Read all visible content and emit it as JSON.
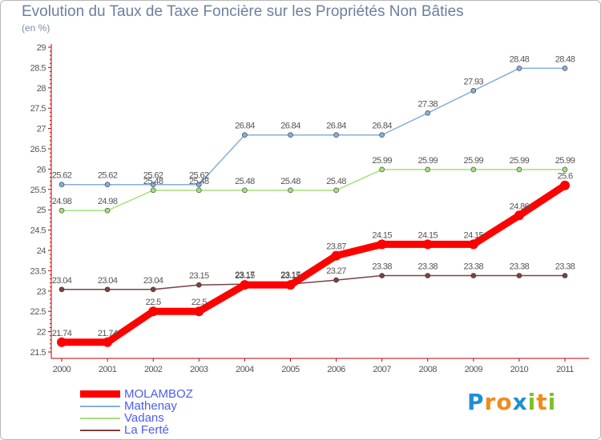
{
  "chart_data": {
    "type": "line",
    "title": "Evolution du Taux de Taxe Foncière sur les Propriétés Non Bâties",
    "subtitle": "(en %)",
    "x": [
      "2000",
      "2001",
      "2002",
      "2003",
      "2004",
      "2005",
      "2006",
      "2007",
      "2008",
      "2009",
      "2010",
      "2011"
    ],
    "ylim": [
      21.5,
      29
    ],
    "yticks": [
      "21.5",
      "22",
      "22.5",
      "23",
      "23.5",
      "24",
      "24.5",
      "25",
      "25.5",
      "26",
      "26.5",
      "27",
      "27.5",
      "28",
      "28.5",
      "29"
    ],
    "grid": false,
    "series": [
      {
        "name": "MOLAMBOZ",
        "color": "#ff0000",
        "values": [
          21.74,
          21.74,
          22.5,
          22.5,
          23.15,
          23.15,
          23.87,
          24.15,
          24.15,
          24.15,
          24.86,
          25.6
        ],
        "labels": [
          "21.74",
          "21.74",
          "22.5",
          "22.5",
          "23.15",
          "23.15",
          "23.87",
          "24.15",
          "24.15",
          "24.15",
          "24.86",
          "25.6"
        ]
      },
      {
        "name": "Mathenay",
        "color": "#86aede",
        "values": [
          25.62,
          25.62,
          25.62,
          25.62,
          26.84,
          26.84,
          26.84,
          26.84,
          27.38,
          27.93,
          28.48,
          28.48
        ],
        "labels": [
          "25.62",
          "25.62",
          "25.62",
          "25.62",
          "26.84",
          "26.84",
          "26.84",
          "26.84",
          "27.38",
          "27.93",
          "28.48",
          "28.48"
        ]
      },
      {
        "name": "Vadans",
        "color": "#a6e07a",
        "values": [
          24.98,
          24.98,
          25.48,
          25.48,
          25.48,
          25.48,
          25.48,
          25.99,
          25.99,
          25.99,
          25.99,
          25.99
        ],
        "labels": [
          "24.98",
          "24.98",
          "25.48",
          "25.48",
          "25.48",
          "25.48",
          "25.48",
          "25.99",
          "25.99",
          "25.99",
          "25.99",
          "25.99"
        ]
      },
      {
        "name": "La Ferté",
        "color": "#7a4242",
        "values": [
          23.04,
          23.04,
          23.04,
          23.15,
          23.17,
          23.17,
          23.27,
          23.38,
          23.38,
          23.38,
          23.38,
          23.38
        ],
        "labels": [
          "23.04",
          "23.04",
          "23.04",
          "23.15",
          "23.17",
          "23.17",
          "23.27",
          "23.38",
          "23.38",
          "23.38",
          "23.38",
          "23.38"
        ]
      }
    ]
  },
  "legend": [
    {
      "name": "MOLAMBOZ",
      "color": "#ff0000"
    },
    {
      "name": "Mathenay",
      "color": "#86aede"
    },
    {
      "name": "Vadans",
      "color": "#a6e07a"
    },
    {
      "name": "La Ferté",
      "color": "#7a4242"
    }
  ],
  "logo": {
    "text": "Proxiti",
    "letters": [
      "P",
      "r",
      "o",
      "x",
      "i",
      "t",
      "i"
    ],
    "colors": [
      "#1f8fd6",
      "#f08a1c",
      "#f08a1c",
      "#1f8fd6",
      "#7fbf2a",
      "#f08a1c",
      "#7fbf2a"
    ]
  }
}
